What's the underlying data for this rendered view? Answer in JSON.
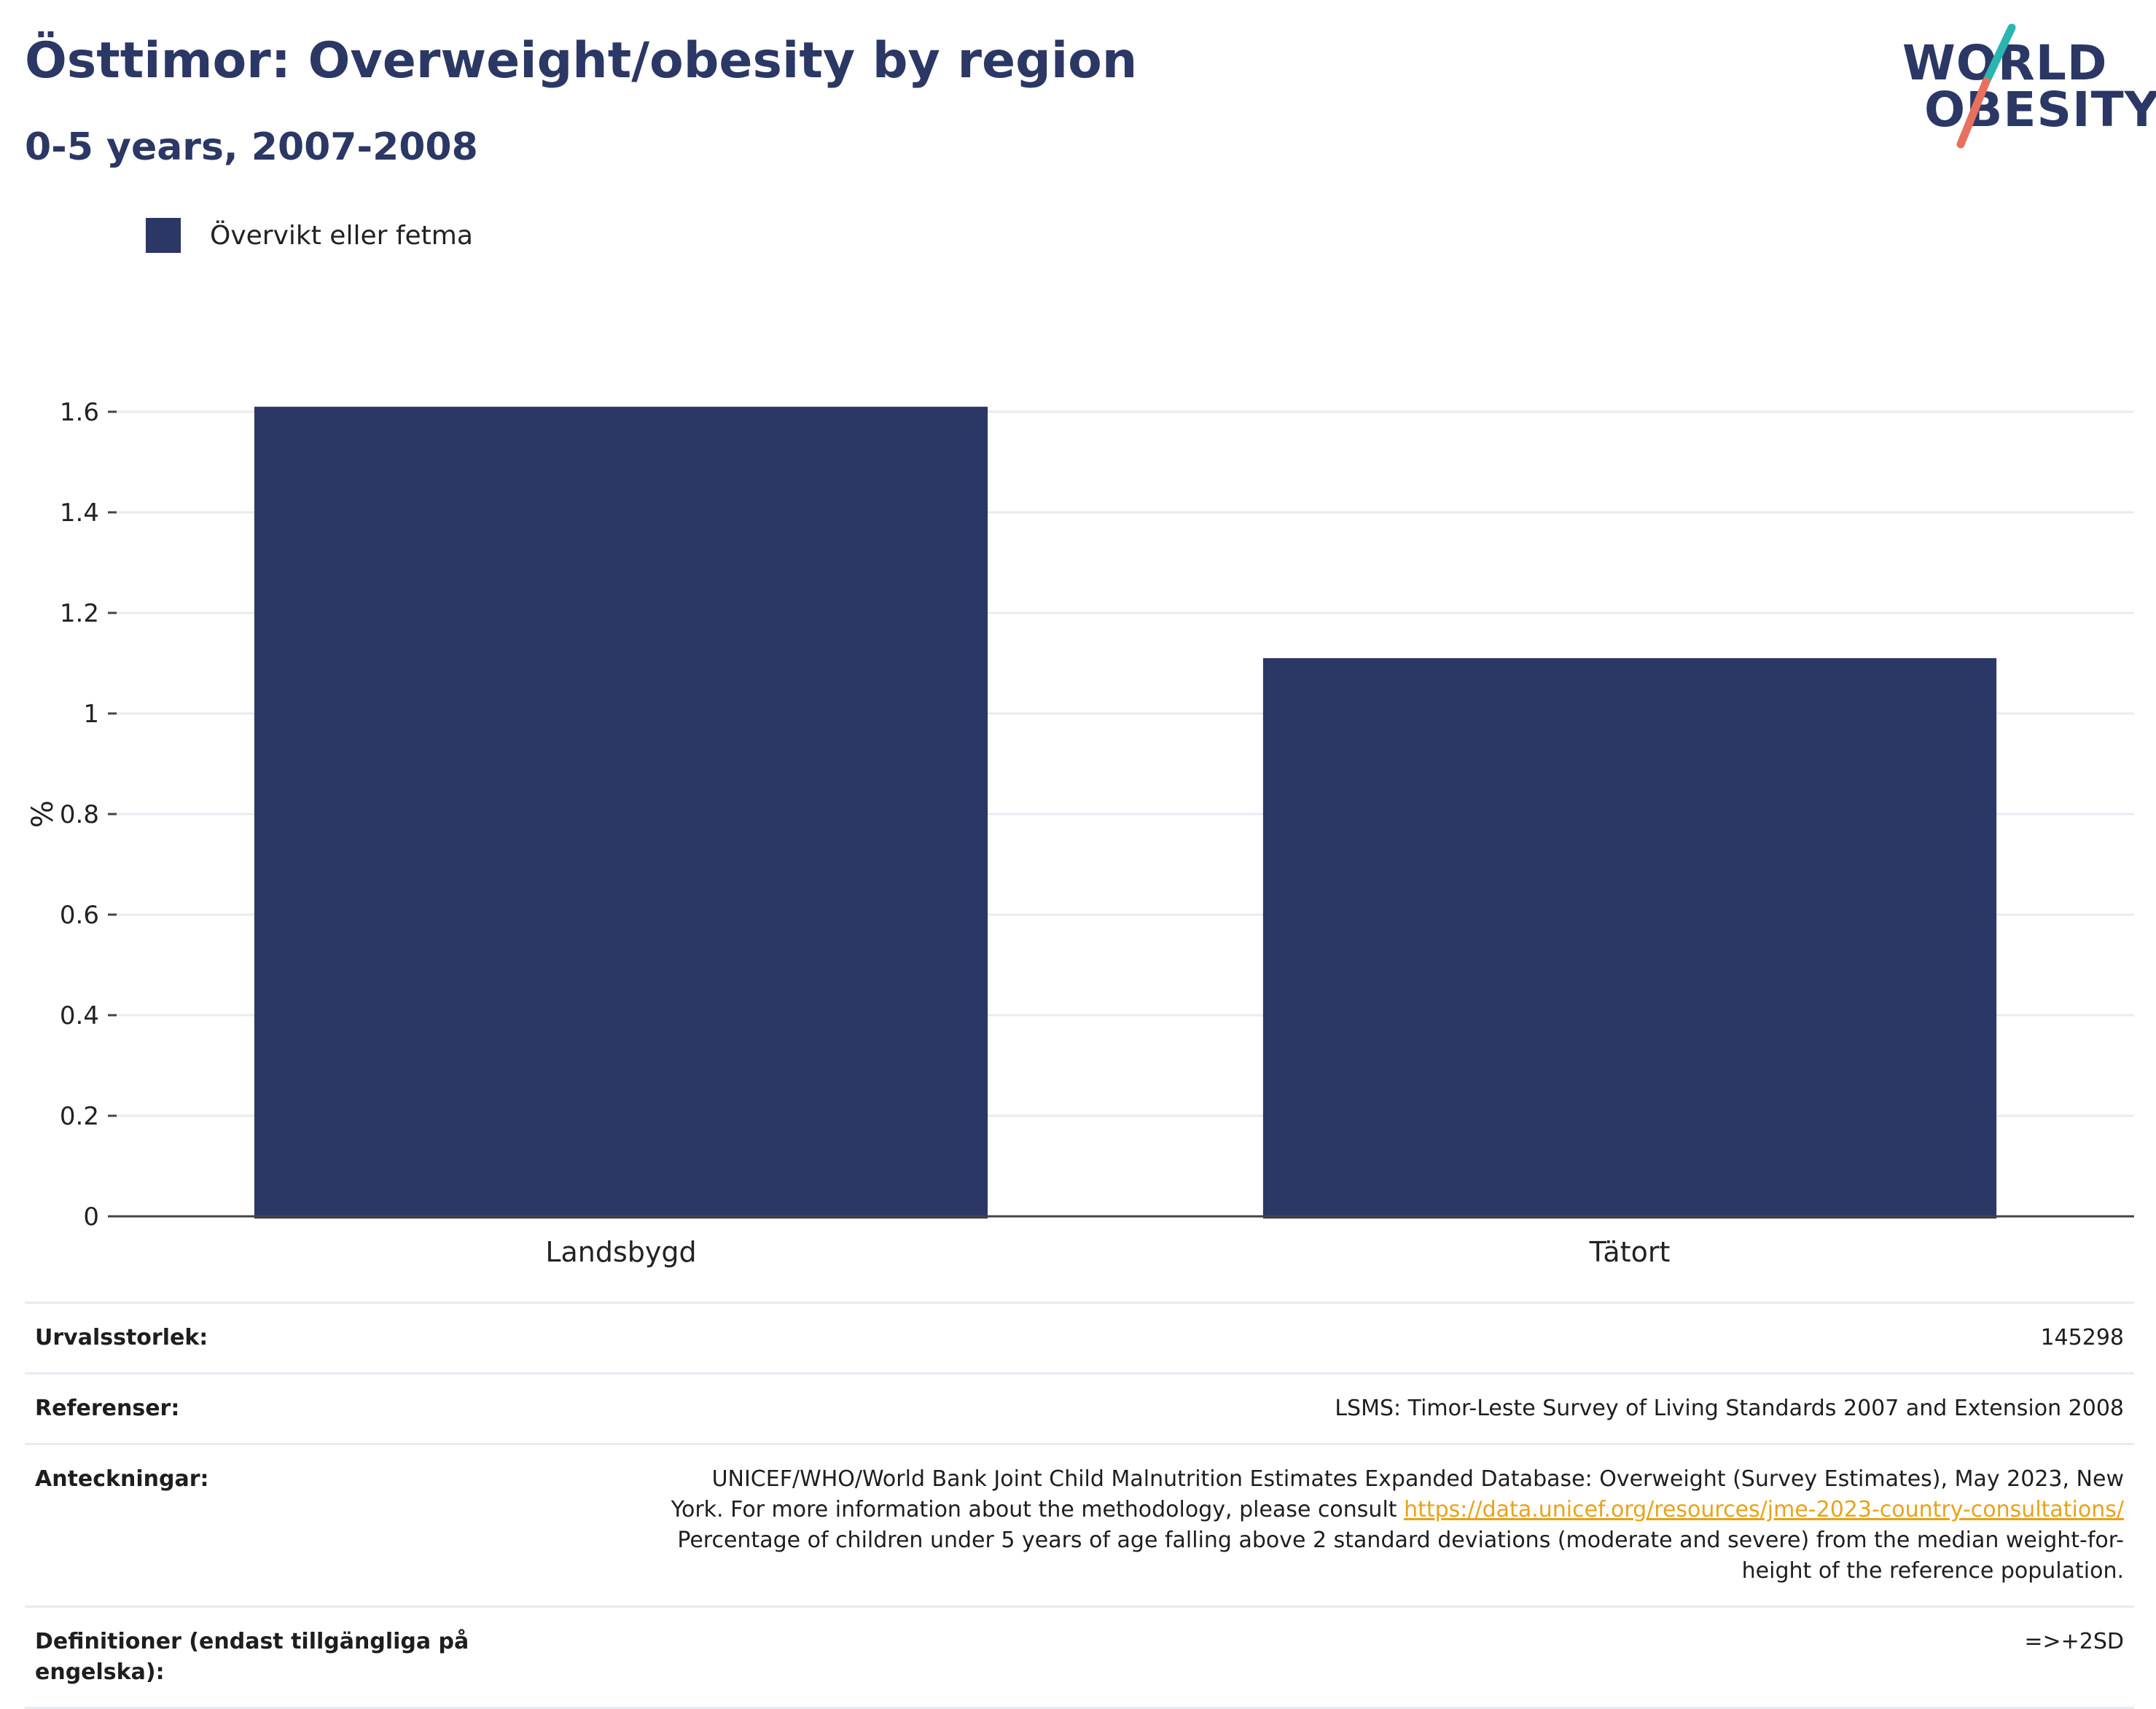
{
  "header": {
    "title": "Östtimor: Overweight/obesity by region",
    "subtitle": "0-5 years, 2007-2008"
  },
  "logo": {
    "line1": "WORLD",
    "line2": "OBESITY",
    "colors": {
      "text": "#2b3764",
      "slash_top": "#2bb5b0",
      "slash_bottom": "#e8705e"
    }
  },
  "legend": {
    "label": "Övervikt eller fetma",
    "color": "#2b3764"
  },
  "chart_data": {
    "type": "bar",
    "categories": [
      "Landsbygd",
      "Tätort"
    ],
    "series": [
      {
        "name": "Övervikt eller fetma",
        "values": [
          1.61,
          1.11
        ],
        "color": "#2b3764"
      }
    ],
    "ylabel": "%",
    "ylim": [
      0,
      1.6
    ],
    "yticks": [
      0,
      0.2,
      0.4,
      0.6,
      0.8,
      1,
      1.2,
      1.4,
      1.6
    ],
    "ytick_labels": [
      "0",
      "0.2",
      "0.4",
      "0.6",
      "0.8",
      "1",
      "1.2",
      "1.4",
      "1.6"
    ],
    "grid": true,
    "legend_position": "top-left"
  },
  "info": {
    "sample_size": {
      "label": "Urvalsstorlek:",
      "value": "145298"
    },
    "references": {
      "label": "Referenser:",
      "value": "LSMS: Timor-Leste Survey of Living Standards 2007 and Extension 2008"
    },
    "notes": {
      "label": "Anteckningar:",
      "line1": "UNICEF/WHO/World Bank Joint Child Malnutrition Estimates Expanded Database: Overweight (Survey Estimates), May 2023, New",
      "line2_prefix": "York. For more information about the methodology, please consult",
      "link": "https://data.unicef.org/resources/jme-2023-country-consultations/",
      "line3": "Percentage of children under 5 years of age falling above 2 standard deviations (moderate and severe) from the median weight-for-",
      "line4": "height of the reference population."
    },
    "definitions": {
      "label": "Definitioner (endast tillgängliga på engelska):",
      "value": "=>+2SD"
    }
  }
}
